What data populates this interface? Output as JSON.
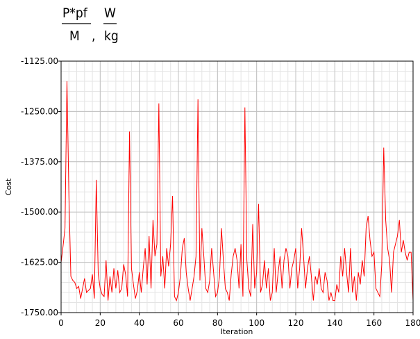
{
  "formula": {
    "numerator_left": "P*pf",
    "denominator_left": "M",
    "separator": ",",
    "numerator_right": "W",
    "denominator_right": "kg"
  },
  "chart_data": {
    "type": "line",
    "xlabel": "Iteration",
    "ylabel": "Cost",
    "xlim": [
      0,
      180
    ],
    "ylim": [
      -1750,
      -1125
    ],
    "x_ticks": [
      0,
      20,
      40,
      60,
      80,
      100,
      120,
      140,
      160,
      180
    ],
    "y_ticks": [
      -1750,
      -1625,
      -1500,
      -1375,
      -1250,
      -1125
    ],
    "x_tick_labels": [
      "0",
      "20",
      "40",
      "60",
      "80",
      "100",
      "120",
      "140",
      "160",
      "180"
    ],
    "y_tick_labels": [
      "-1750.00",
      "-1625.00",
      "-1500.00",
      "-1375.00",
      "-1250.00",
      "-1125.00"
    ],
    "grid": true,
    "line_color": "#ff0000",
    "series": [
      {
        "values": [
          -1625,
          -1585,
          -1540,
          -1175,
          -1460,
          -1660,
          -1670,
          -1675,
          -1690,
          -1685,
          -1715,
          -1690,
          -1665,
          -1700,
          -1695,
          -1690,
          -1655,
          -1715,
          -1420,
          -1655,
          -1690,
          -1705,
          -1710,
          -1620,
          -1720,
          -1660,
          -1700,
          -1640,
          -1690,
          -1645,
          -1700,
          -1690,
          -1630,
          -1655,
          -1710,
          -1300,
          -1640,
          -1680,
          -1715,
          -1695,
          -1650,
          -1700,
          -1640,
          -1590,
          -1680,
          -1560,
          -1690,
          -1520,
          -1610,
          -1580,
          -1230,
          -1660,
          -1610,
          -1690,
          -1590,
          -1635,
          -1580,
          -1460,
          -1710,
          -1720,
          -1700,
          -1660,
          -1590,
          -1565,
          -1650,
          -1690,
          -1720,
          -1690,
          -1660,
          -1610,
          -1220,
          -1670,
          -1540,
          -1610,
          -1690,
          -1700,
          -1670,
          -1590,
          -1650,
          -1710,
          -1700,
          -1660,
          -1540,
          -1620,
          -1690,
          -1700,
          -1720,
          -1655,
          -1610,
          -1590,
          -1620,
          -1690,
          -1580,
          -1710,
          -1240,
          -1620,
          -1690,
          -1710,
          -1530,
          -1690,
          -1650,
          -1480,
          -1700,
          -1680,
          -1620,
          -1690,
          -1640,
          -1720,
          -1700,
          -1590,
          -1700,
          -1650,
          -1610,
          -1690,
          -1620,
          -1590,
          -1610,
          -1690,
          -1640,
          -1620,
          -1590,
          -1690,
          -1640,
          -1540,
          -1610,
          -1690,
          -1640,
          -1610,
          -1660,
          -1720,
          -1660,
          -1680,
          -1640,
          -1690,
          -1700,
          -1650,
          -1670,
          -1720,
          -1700,
          -1720,
          -1720,
          -1680,
          -1700,
          -1610,
          -1660,
          -1590,
          -1650,
          -1700,
          -1590,
          -1700,
          -1660,
          -1720,
          -1650,
          -1680,
          -1620,
          -1660,
          -1540,
          -1510,
          -1570,
          -1610,
          -1600,
          -1690,
          -1700,
          -1710,
          -1630,
          -1340,
          -1520,
          -1590,
          -1620,
          -1700,
          -1600,
          -1580,
          -1560,
          -1520,
          -1600,
          -1570,
          -1600,
          -1620,
          -1600,
          -1600,
          -1720
        ]
      }
    ]
  }
}
